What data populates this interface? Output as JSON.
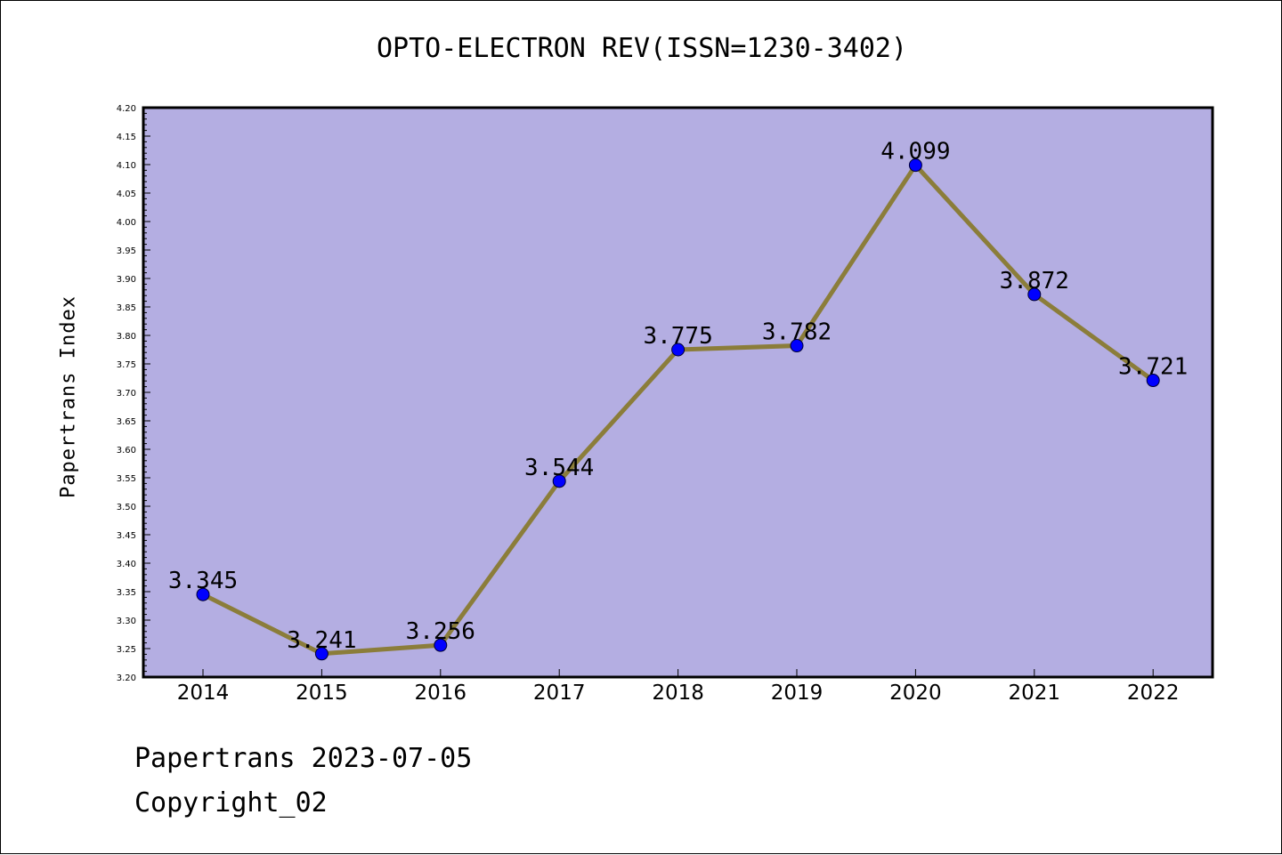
{
  "title": "OPTO-ELECTRON REV(ISSN=1230-3402)",
  "footer": {
    "date_line": "Papertrans 2023-07-05",
    "copyright_line": "Copyright_02"
  },
  "colors": {
    "plot_background": "#b4aee2",
    "line": "#8b7d3a",
    "marker": "#0000ff"
  },
  "chart_data": {
    "type": "line",
    "title": "OPTO-ELECTRON REV(ISSN=1230-3402)",
    "xlabel": "",
    "ylabel": "Papertrans Index",
    "categories": [
      "2014",
      "2015",
      "2016",
      "2017",
      "2018",
      "2019",
      "2020",
      "2021",
      "2022"
    ],
    "series": [
      {
        "values": [
          3.345,
          3.241,
          3.256,
          3.544,
          3.775,
          3.782,
          4.099,
          3.872,
          3.721
        ],
        "labels": [
          "3.345",
          "3.241",
          "3.256",
          "3.544",
          "3.775",
          "3.782",
          "4.099",
          "3.872",
          "3.721"
        ]
      }
    ],
    "ylim": [
      3.2,
      4.2
    ],
    "yticks": [
      "3.20",
      "3.25",
      "3.30",
      "3.35",
      "3.40",
      "3.45",
      "3.50",
      "3.55",
      "3.60",
      "3.65",
      "3.70",
      "3.75",
      "3.80",
      "3.85",
      "3.90",
      "3.95",
      "4.00",
      "4.05",
      "4.10",
      "4.15",
      "4.20"
    ],
    "grid": false,
    "legend": "none"
  }
}
